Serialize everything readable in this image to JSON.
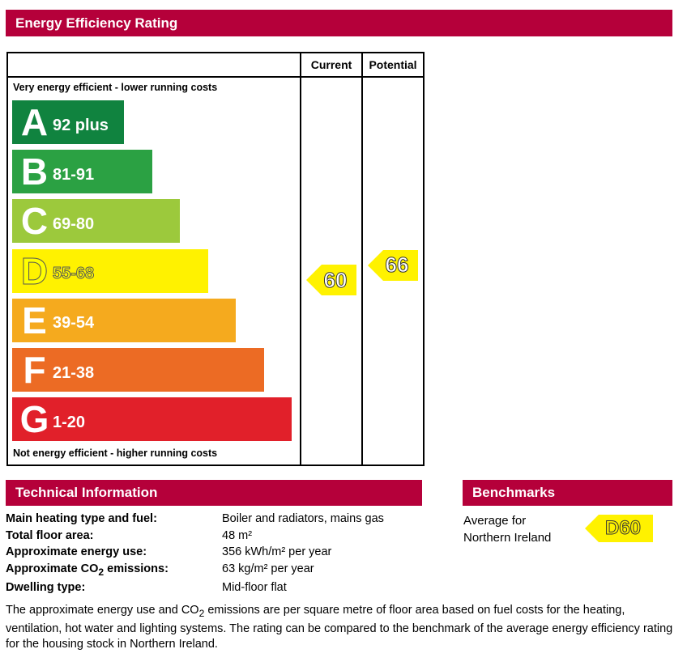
{
  "header": {
    "title": "Energy Efficiency Rating"
  },
  "chart_data": {
    "type": "bar",
    "title": "Energy Efficiency Rating",
    "columns": [
      "Current",
      "Potential"
    ],
    "top_caption": "Very energy efficient - lower running costs",
    "bottom_caption": "Not energy efficient - higher running costs",
    "bands": [
      {
        "letter": "A",
        "range": "92 plus",
        "min": 92,
        "color": "#008054"
      },
      {
        "letter": "B",
        "range": "81-91",
        "min": 81,
        "max": 91,
        "color": "#19b459"
      },
      {
        "letter": "C",
        "range": "69-80",
        "min": 69,
        "max": 80,
        "color": "#8dce46"
      },
      {
        "letter": "D",
        "range": "55-68",
        "min": 55,
        "max": 68,
        "color": "#ffd500"
      },
      {
        "letter": "E",
        "range": "39-54",
        "min": 39,
        "max": 54,
        "color": "#fcaa65"
      },
      {
        "letter": "F",
        "range": "21-38",
        "min": 21,
        "max": 38,
        "color": "#ef8023"
      },
      {
        "letter": "G",
        "range": "1-20",
        "min": 1,
        "max": 20,
        "color": "#e9153b"
      }
    ],
    "band_colors_rendered": [
      "#10833f",
      "#2ba143",
      "#9cc93c",
      "#fff200",
      "#f5aa1e",
      "#ec6b24",
      "#e1202a"
    ],
    "current": {
      "value": 60,
      "band": "D"
    },
    "potential": {
      "value": 66,
      "band": "D"
    }
  },
  "technical": {
    "title": "Technical Information",
    "rows": [
      {
        "label": "Main heating type and fuel:",
        "value": "Boiler and radiators, mains gas"
      },
      {
        "label": "Total floor area:",
        "value": "48 m²"
      },
      {
        "label": "Approximate energy use:",
        "value": "356 kWh/m² per year"
      },
      {
        "label_prefix": "Approximate CO",
        "label_sub": "2",
        "label_suffix": " emissions:",
        "value": "63 kg/m² per year"
      },
      {
        "label": "Dwelling type:",
        "value": "Mid-floor flat"
      }
    ]
  },
  "benchmarks": {
    "title": "Benchmarks",
    "label_line1": "Average for",
    "label_line2": "Northern Ireland",
    "value": "D60"
  },
  "note": {
    "part1": "The approximate energy use and CO",
    "sub": "2",
    "part2": " emissions are per square metre of floor area based on fuel costs for the heating, ventilation, hot water and lighting systems. The rating can be compared to the benchmark of the average energy efficiency rating for the housing stock in Northern Ireland."
  }
}
